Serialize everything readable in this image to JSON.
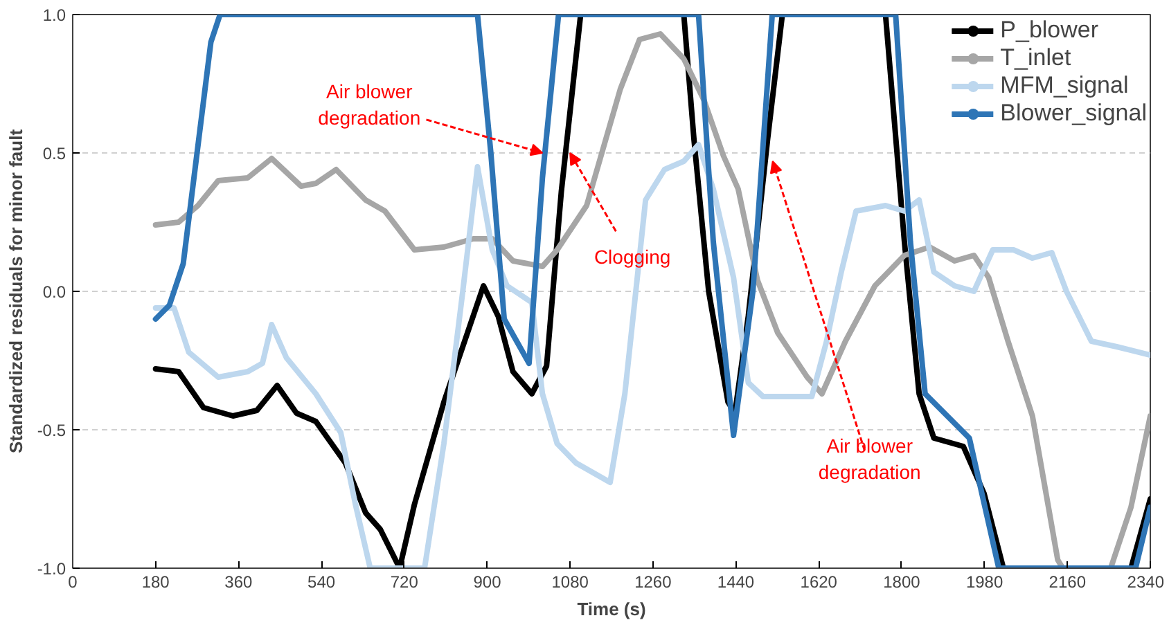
{
  "chart_data": {
    "type": "line",
    "xlabel": "Time (s)",
    "ylabel": "Standardized residuals for minor fault",
    "xlim": [
      0,
      2340
    ],
    "xticks": [
      0,
      180,
      360,
      540,
      720,
      900,
      1080,
      1260,
      1440,
      1620,
      1800,
      1980,
      2160,
      2340
    ],
    "ylim": [
      -1.0,
      1.0
    ],
    "yticks": [
      {
        "value": -1.0,
        "label": "-1.0"
      },
      {
        "value": -0.5,
        "label": "-0.5"
      },
      {
        "value": 0.0,
        "label": "0.0"
      },
      {
        "value": 0.5,
        "label": "0.5"
      },
      {
        "value": 1.0,
        "label": "1.0"
      }
    ],
    "grid": "y",
    "legend": "top right",
    "marker": "circle",
    "line_style": "solid",
    "series": [
      {
        "name": "P_blower",
        "color": "#000000",
        "x": [
          180,
          230,
          284,
          348,
          400,
          444,
          486,
          528,
          592,
          636,
          668,
          710,
          742,
          806,
          892,
          924,
          956,
          997,
          1029,
          1061,
          1103,
          1327,
          1349,
          1381,
          1423,
          1438,
          1467,
          1509,
          1541,
          1765,
          1806,
          1838,
          1870,
          1934,
          1979,
          2021,
          2298,
          2340
        ],
        "values": [
          -0.28,
          -0.29,
          -0.42,
          -0.45,
          -0.43,
          -0.34,
          -0.44,
          -0.47,
          -0.62,
          -0.8,
          -0.86,
          -1.0,
          -0.77,
          -0.4,
          0.02,
          -0.09,
          -0.29,
          -0.37,
          -0.27,
          0.36,
          1.0,
          1.0,
          0.55,
          0.0,
          -0.4,
          -0.44,
          -0.09,
          0.55,
          1.0,
          1.0,
          0.18,
          -0.37,
          -0.53,
          -0.56,
          -0.73,
          -1.0,
          -1.0,
          -0.75
        ]
      },
      {
        "name": "T_inlet",
        "color": "#a6a6a6",
        "x": [
          180,
          230,
          272,
          316,
          380,
          432,
          496,
          528,
          572,
          636,
          678,
          742,
          806,
          870,
          911,
          956,
          1020,
          1052,
          1116,
          1189,
          1231,
          1276,
          1327,
          1371,
          1413,
          1445,
          1487,
          1531,
          1595,
          1627,
          1678,
          1742,
          1806,
          1861,
          1915,
          1957,
          1989,
          2031,
          2084,
          2139,
          2150,
          2254,
          2298,
          2340
        ],
        "values": [
          0.24,
          0.25,
          0.31,
          0.4,
          0.41,
          0.48,
          0.38,
          0.39,
          0.44,
          0.33,
          0.29,
          0.15,
          0.16,
          0.19,
          0.19,
          0.11,
          0.09,
          0.15,
          0.31,
          0.73,
          0.91,
          0.93,
          0.84,
          0.69,
          0.49,
          0.37,
          0.04,
          -0.15,
          -0.31,
          -0.37,
          -0.18,
          0.02,
          0.13,
          0.16,
          0.11,
          0.13,
          0.05,
          -0.18,
          -0.45,
          -0.97,
          -1.0,
          -1.0,
          -0.78,
          -0.45
        ]
      },
      {
        "name": "MFM_signal",
        "color": "#bdd7ee",
        "x": [
          180,
          220,
          252,
          316,
          380,
          412,
          432,
          464,
          528,
          582,
          614,
          646,
          764,
          806,
          847,
          879,
          911,
          943,
          997,
          1020,
          1052,
          1093,
          1167,
          1199,
          1244,
          1285,
          1327,
          1359,
          1391,
          1435,
          1467,
          1499,
          1605,
          1637,
          1669,
          1701,
          1765,
          1806,
          1838,
          1870,
          1915,
          1957,
          1998,
          2043,
          2084,
          2126,
          2158,
          2212,
          2267,
          2340
        ],
        "values": [
          -0.06,
          -0.06,
          -0.22,
          -0.31,
          -0.29,
          -0.26,
          -0.12,
          -0.24,
          -0.37,
          -0.51,
          -0.77,
          -1.0,
          -1.0,
          -0.55,
          0.0,
          0.45,
          0.15,
          0.02,
          -0.04,
          -0.37,
          -0.55,
          -0.62,
          -0.69,
          -0.37,
          0.33,
          0.44,
          0.47,
          0.53,
          0.37,
          0.05,
          -0.33,
          -0.38,
          -0.38,
          -0.18,
          0.07,
          0.29,
          0.31,
          0.29,
          0.33,
          0.07,
          0.02,
          0.0,
          0.15,
          0.15,
          0.12,
          0.14,
          0.0,
          -0.18,
          -0.2,
          -0.23
        ]
      },
      {
        "name": "Blower_signal",
        "color": "#2e75b6",
        "x": [
          180,
          210,
          240,
          270,
          300,
          320,
          879,
          908,
          937,
          991,
          1020,
          1055,
          1359,
          1391,
          1435,
          1477,
          1519,
          1787,
          1819,
          1851,
          1947,
          2011,
          2308,
          2340
        ],
        "values": [
          -0.1,
          -0.05,
          0.1,
          0.5,
          0.9,
          1.0,
          1.0,
          0.5,
          -0.1,
          -0.26,
          0.41,
          1.0,
          1.0,
          0.18,
          -0.52,
          0.0,
          1.0,
          1.0,
          0.18,
          -0.37,
          -0.53,
          -1.0,
          -1.0,
          -0.78
        ]
      }
    ],
    "annotations": [
      {
        "text": "Air blower\ndegradation",
        "x": 1020,
        "y": 0.5
      },
      {
        "text": "Clogging",
        "x": 1080,
        "y": 0.5
      },
      {
        "text": "Air blower\ndegradation",
        "x": 1520,
        "y": 0.47
      }
    ]
  }
}
